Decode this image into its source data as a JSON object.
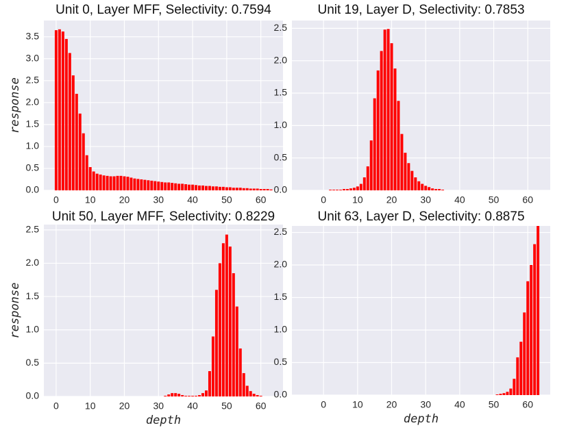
{
  "chart_data": [
    {
      "type": "bar",
      "title": "Unit 0, Layer MFF, Selectivity: 0.7594",
      "ylabel": "response",
      "color": "#ff0000",
      "x": [
        0,
        1,
        2,
        3,
        4,
        5,
        6,
        7,
        8,
        9,
        10,
        11,
        12,
        13,
        14,
        15,
        16,
        17,
        18,
        19,
        20,
        21,
        22,
        23,
        24,
        25,
        26,
        27,
        28,
        29,
        30,
        31,
        32,
        33,
        34,
        35,
        36,
        37,
        38,
        39,
        40,
        41,
        42,
        43,
        44,
        45,
        46,
        47,
        48,
        49,
        50,
        51,
        52,
        53,
        54,
        55,
        56,
        57,
        58,
        59,
        60,
        61,
        62,
        63
      ],
      "values": [
        3.65,
        3.67,
        3.62,
        3.45,
        3.13,
        2.62,
        2.2,
        1.75,
        1.3,
        0.8,
        0.53,
        0.43,
        0.38,
        0.36,
        0.34,
        0.33,
        0.32,
        0.32,
        0.33,
        0.33,
        0.32,
        0.31,
        0.29,
        0.27,
        0.26,
        0.25,
        0.24,
        0.23,
        0.22,
        0.21,
        0.2,
        0.19,
        0.18,
        0.18,
        0.17,
        0.16,
        0.15,
        0.15,
        0.14,
        0.13,
        0.13,
        0.12,
        0.11,
        0.11,
        0.1,
        0.1,
        0.09,
        0.09,
        0.08,
        0.08,
        0.07,
        0.07,
        0.06,
        0.06,
        0.06,
        0.05,
        0.05,
        0.04,
        0.04,
        0.04,
        0.03,
        0.03,
        0.03,
        0.02
      ],
      "xlim": [
        -3.6,
        66.5
      ],
      "ylim": [
        0,
        3.87
      ],
      "xticks": [
        0,
        10,
        20,
        30,
        40,
        50,
        60
      ],
      "yticks": [
        {
          "value": 0,
          "label": "0.0"
        },
        0.5,
        {
          "value": 1,
          "label": "1.0"
        },
        1.5,
        {
          "value": 2,
          "label": "2.0"
        },
        2.5,
        {
          "value": 3,
          "label": "3.0"
        },
        3.5
      ],
      "grid": true
    },
    {
      "type": "bar",
      "title": "Unit 19, Layer D, Selectivity: 0.7853",
      "color": "#ff0000",
      "x": [
        0,
        1,
        2,
        3,
        4,
        5,
        6,
        7,
        8,
        9,
        10,
        11,
        12,
        13,
        14,
        15,
        16,
        17,
        18,
        19,
        20,
        21,
        22,
        23,
        24,
        25,
        26,
        27,
        28,
        29,
        30,
        31,
        32,
        33,
        34,
        35,
        36,
        37,
        38,
        39,
        40,
        41,
        42,
        43,
        44,
        45,
        46,
        47,
        48,
        49,
        50,
        51,
        52,
        53,
        54,
        55,
        56,
        57,
        58,
        59,
        60,
        61,
        62,
        63
      ],
      "values": [
        0,
        0,
        0.01,
        0.01,
        0.01,
        0.01,
        0.02,
        0.02,
        0.03,
        0.04,
        0.06,
        0.1,
        0.2,
        0.37,
        0.77,
        1.42,
        1.85,
        2.15,
        2.48,
        2.49,
        2.27,
        1.88,
        1.38,
        0.87,
        0.58,
        0.42,
        0.3,
        0.2,
        0.14,
        0.1,
        0.07,
        0.05,
        0.03,
        0.02,
        0.02,
        0.01,
        0,
        0,
        0,
        0,
        0,
        0,
        0,
        0,
        0,
        0,
        0,
        0,
        0,
        0,
        0,
        0,
        0,
        0,
        0,
        0,
        0,
        0,
        0,
        0,
        0,
        0,
        0,
        0
      ],
      "xlim": [
        -9.3,
        66.6
      ],
      "ylim": [
        0,
        2.62
      ],
      "xticks": [
        0,
        10,
        20,
        30,
        40,
        50,
        60
      ],
      "yticks": [
        {
          "value": 0,
          "label": "0.0"
        },
        0.5,
        {
          "value": 1,
          "label": "1.0"
        },
        1.5,
        {
          "value": 2,
          "label": "2.0"
        },
        2.5
      ],
      "grid": true
    },
    {
      "type": "bar",
      "title": "Unit 50, Layer MFF, Selectivity: 0.8229",
      "ylabel": "response",
      "xlabel": "depth",
      "color": "#ff0000",
      "x": [
        0,
        1,
        2,
        3,
        4,
        5,
        6,
        7,
        8,
        9,
        10,
        11,
        12,
        13,
        14,
        15,
        16,
        17,
        18,
        19,
        20,
        21,
        22,
        23,
        24,
        25,
        26,
        27,
        28,
        29,
        30,
        31,
        32,
        33,
        34,
        35,
        36,
        37,
        38,
        39,
        40,
        41,
        42,
        43,
        44,
        45,
        46,
        47,
        48,
        49,
        50,
        51,
        52,
        53,
        54,
        55,
        56,
        57,
        58,
        59,
        60,
        61,
        62,
        63
      ],
      "values": [
        0,
        0,
        0,
        0,
        0,
        0,
        0,
        0,
        0,
        0,
        0,
        0,
        0,
        0,
        0,
        0,
        0,
        0,
        0,
        0,
        0,
        0,
        0,
        0,
        0,
        0,
        0,
        0,
        0,
        0,
        0,
        0,
        0.01,
        0.03,
        0.05,
        0.05,
        0.04,
        0.02,
        0.01,
        0.01,
        0.01,
        0.01,
        0.02,
        0.05,
        0.09,
        0.38,
        0.9,
        1.6,
        2.0,
        2.3,
        2.43,
        2.25,
        1.85,
        1.35,
        0.72,
        0.35,
        0.16,
        0.08,
        0.04,
        0.02,
        0.01,
        0,
        0,
        0
      ],
      "xlim": [
        -3.6,
        66.5
      ],
      "ylim": [
        0,
        2.58
      ],
      "xticks": [
        0,
        10,
        20,
        30,
        40,
        50,
        60
      ],
      "yticks": [
        {
          "value": 0,
          "label": "0.0"
        },
        0.5,
        {
          "value": 1,
          "label": "1.0"
        },
        1.5,
        {
          "value": 2,
          "label": "2.0"
        },
        2.5
      ],
      "grid": true
    },
    {
      "type": "bar",
      "title": "Unit 63, Layer D, Selectivity: 0.8875",
      "xlabel": "depth",
      "color": "#ff0000",
      "x": [
        0,
        1,
        2,
        3,
        4,
        5,
        6,
        7,
        8,
        9,
        10,
        11,
        12,
        13,
        14,
        15,
        16,
        17,
        18,
        19,
        20,
        21,
        22,
        23,
        24,
        25,
        26,
        27,
        28,
        29,
        30,
        31,
        32,
        33,
        34,
        35,
        36,
        37,
        38,
        39,
        40,
        41,
        42,
        43,
        44,
        45,
        46,
        47,
        48,
        49,
        50,
        51,
        52,
        53,
        54,
        55,
        56,
        57,
        58,
        59,
        60,
        61,
        62,
        63
      ],
      "values": [
        0,
        0,
        0,
        0,
        0,
        0,
        0,
        0,
        0,
        0,
        0,
        0,
        0,
        0,
        0,
        0,
        0,
        0,
        0,
        0,
        0,
        0,
        0,
        0,
        0,
        0,
        0,
        0,
        0,
        0,
        0,
        0,
        0,
        0,
        0,
        0,
        0,
        0,
        0,
        0,
        0,
        0,
        0,
        0,
        0,
        0,
        0,
        0,
        0,
        0,
        0,
        0.01,
        0.02,
        0.03,
        0.05,
        0.1,
        0.25,
        0.58,
        0.82,
        1.27,
        1.75,
        2.0,
        2.32,
        2.6
      ],
      "xlim": [
        -9.3,
        66.6
      ],
      "ylim": [
        0,
        2.6
      ],
      "xticks": [
        0,
        10,
        20,
        30,
        40,
        50,
        60
      ],
      "yticks": [
        {
          "value": 0,
          "label": "0.0"
        },
        0.5,
        {
          "value": 1,
          "label": "1.0"
        },
        1.5,
        {
          "value": 2,
          "label": "2.0"
        },
        2.5
      ],
      "grid": true
    }
  ]
}
